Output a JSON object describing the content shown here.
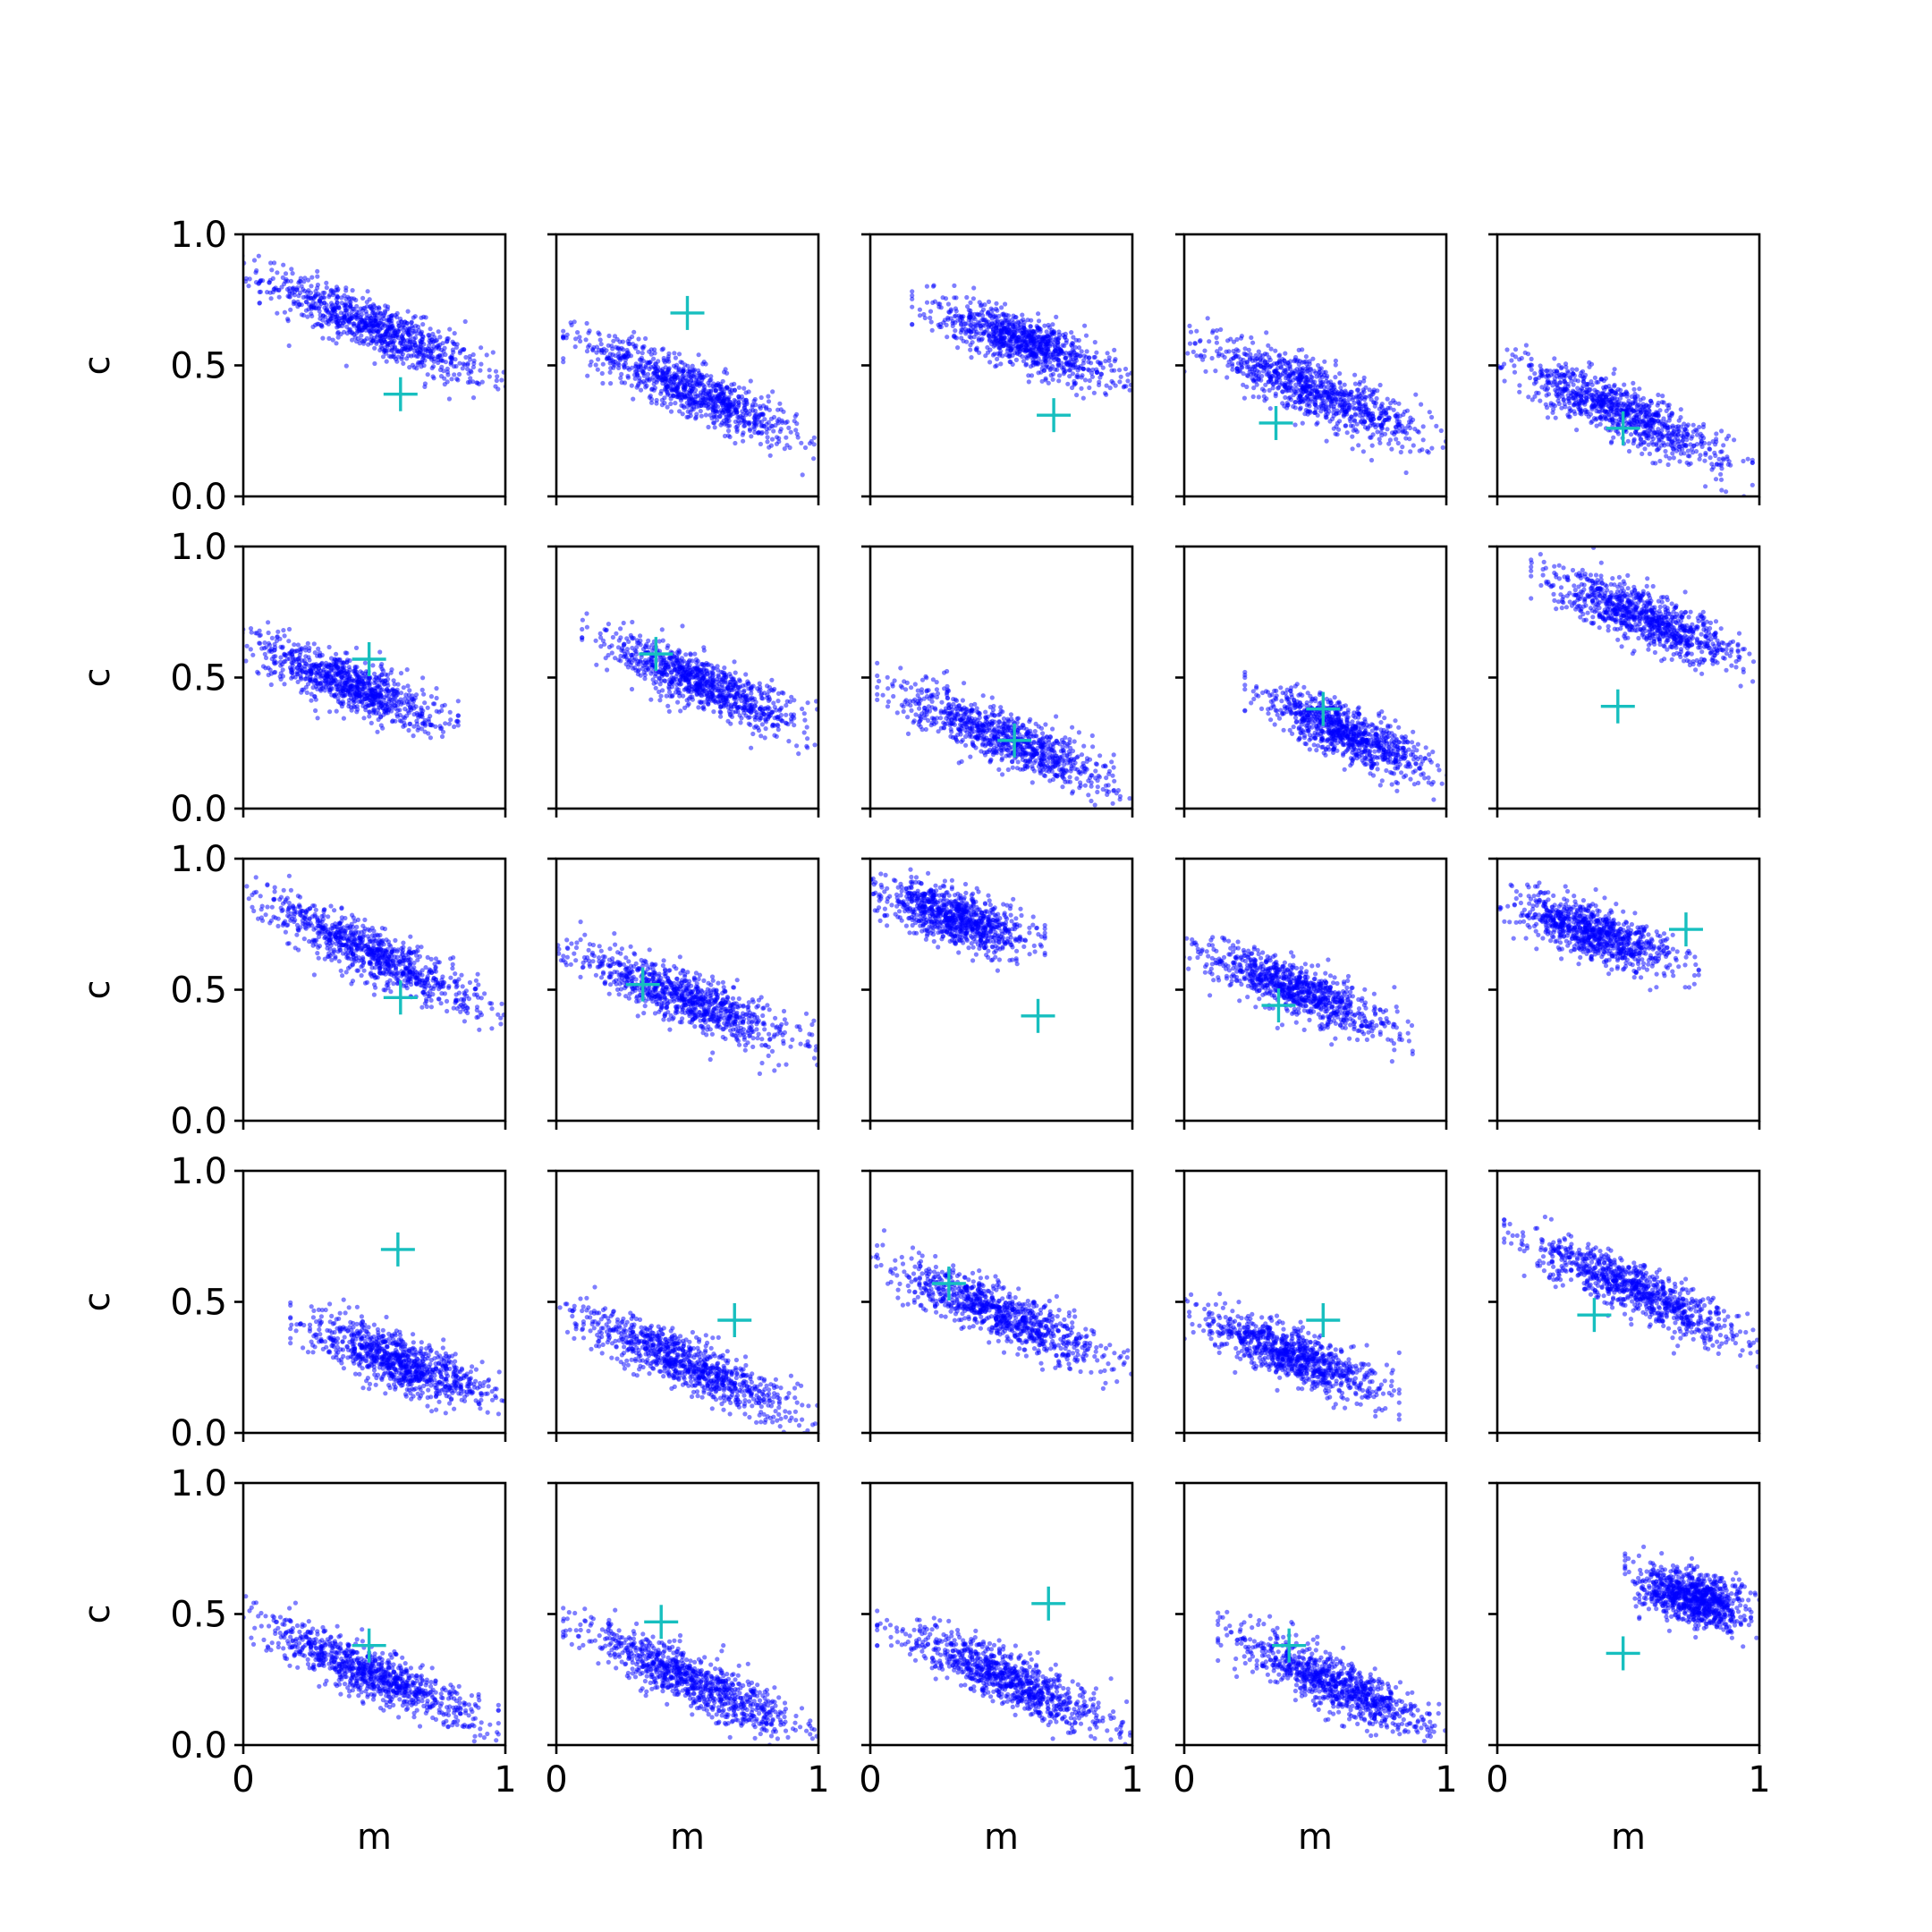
{
  "figure": {
    "rows": 5,
    "cols": 5,
    "xlabel": "m",
    "ylabel": "c",
    "xlim": [
      0,
      1
    ],
    "ylim": [
      0,
      1
    ],
    "x_ticks": [
      "0",
      "1"
    ],
    "y_ticks": [
      "0.0",
      "0.5",
      "1.0"
    ],
    "point_color": "#0000ff",
    "marker_color": "#17bfbf",
    "marker_shape": "plus-icon"
  },
  "chart_data": [
    {
      "type": "scatter",
      "panel": [
        1,
        1
      ],
      "cloud": {
        "x_range": [
          0.0,
          1.0
        ],
        "y_at_x0": 0.86,
        "y_at_x1": 0.43,
        "spread": 0.05
      },
      "truth": {
        "m": 0.6,
        "c": 0.39
      }
    },
    {
      "type": "scatter",
      "panel": [
        1,
        2
      ],
      "cloud": {
        "x_range": [
          0.05,
          1.0
        ],
        "y_at_x0": 0.63,
        "y_at_x1": 0.2,
        "spread": 0.05
      },
      "truth": {
        "m": 0.5,
        "c": 0.7
      }
    },
    {
      "type": "scatter",
      "panel": [
        1,
        3
      ],
      "cloud": {
        "x_range": [
          0.18,
          1.0
        ],
        "y_at_x0": 0.8,
        "y_at_x1": 0.44,
        "spread": 0.05
      },
      "truth": {
        "m": 0.7,
        "c": 0.31
      }
    },
    {
      "type": "scatter",
      "panel": [
        1,
        4
      ],
      "cloud": {
        "x_range": [
          0.0,
          1.0
        ],
        "y_at_x0": 0.6,
        "y_at_x1": 0.2,
        "spread": 0.05
      },
      "truth": {
        "m": 0.35,
        "c": 0.28
      }
    },
    {
      "type": "scatter",
      "panel": [
        1,
        5
      ],
      "cloud": {
        "x_range": [
          0.0,
          0.95
        ],
        "y_at_x0": 0.52,
        "y_at_x1": 0.1,
        "spread": 0.05
      },
      "truth": {
        "m": 0.48,
        "c": 0.26
      }
    },
    {
      "type": "scatter",
      "panel": [
        2,
        1
      ],
      "cloud": {
        "x_range": [
          0.0,
          0.8
        ],
        "y_at_x0": 0.63,
        "y_at_x1": 0.25,
        "spread": 0.05
      },
      "truth": {
        "m": 0.48,
        "c": 0.57
      }
    },
    {
      "type": "scatter",
      "panel": [
        2,
        2
      ],
      "cloud": {
        "x_range": [
          0.12,
          1.0
        ],
        "y_at_x0": 0.7,
        "y_at_x1": 0.3,
        "spread": 0.05
      },
      "truth": {
        "m": 0.38,
        "c": 0.59
      }
    },
    {
      "type": "scatter",
      "panel": [
        2,
        3
      ],
      "cloud": {
        "x_range": [
          0.05,
          1.0
        ],
        "y_at_x0": 0.47,
        "y_at_x1": 0.08,
        "spread": 0.05
      },
      "truth": {
        "m": 0.55,
        "c": 0.26
      }
    },
    {
      "type": "scatter",
      "panel": [
        2,
        4
      ],
      "cloud": {
        "x_range": [
          0.25,
          1.0
        ],
        "y_at_x0": 0.55,
        "y_at_x1": 0.13,
        "spread": 0.05
      },
      "truth": {
        "m": 0.53,
        "c": 0.38
      }
    },
    {
      "type": "scatter",
      "panel": [
        2,
        5
      ],
      "cloud": {
        "x_range": [
          0.15,
          1.0
        ],
        "y_at_x0": 0.95,
        "y_at_x1": 0.55,
        "spread": 0.05
      },
      "truth": {
        "m": 0.46,
        "c": 0.39
      }
    },
    {
      "type": "scatter",
      "panel": [
        3,
        1
      ],
      "cloud": {
        "x_range": [
          0.0,
          1.0
        ],
        "y_at_x0": 0.87,
        "y_at_x1": 0.4,
        "spread": 0.05
      },
      "truth": {
        "m": 0.6,
        "c": 0.47
      }
    },
    {
      "type": "scatter",
      "panel": [
        3,
        2
      ],
      "cloud": {
        "x_range": [
          0.0,
          1.0
        ],
        "y_at_x0": 0.65,
        "y_at_x1": 0.28,
        "spread": 0.05
      },
      "truth": {
        "m": 0.33,
        "c": 0.52
      }
    },
    {
      "type": "scatter",
      "panel": [
        3,
        3
      ],
      "cloud": {
        "x_range": [
          0.0,
          0.65
        ],
        "y_at_x0": 0.87,
        "y_at_x1": 0.58,
        "spread": 0.05
      },
      "truth": {
        "m": 0.64,
        "c": 0.4
      }
    },
    {
      "type": "scatter",
      "panel": [
        3,
        4
      ],
      "cloud": {
        "x_range": [
          0.0,
          0.85
        ],
        "y_at_x0": 0.66,
        "y_at_x1": 0.28,
        "spread": 0.05
      },
      "truth": {
        "m": 0.36,
        "c": 0.44
      }
    },
    {
      "type": "scatter",
      "panel": [
        3,
        5
      ],
      "cloud": {
        "x_range": [
          0.0,
          0.75
        ],
        "y_at_x0": 0.83,
        "y_at_x1": 0.52,
        "spread": 0.05
      },
      "truth": {
        "m": 0.72,
        "c": 0.73
      }
    },
    {
      "type": "scatter",
      "panel": [
        4,
        1
      ],
      "cloud": {
        "x_range": [
          0.2,
          1.0
        ],
        "y_at_x0": 0.48,
        "y_at_x1": 0.13,
        "spread": 0.05
      },
      "truth": {
        "m": 0.59,
        "c": 0.7
      }
    },
    {
      "type": "scatter",
      "panel": [
        4,
        2
      ],
      "cloud": {
        "x_range": [
          0.0,
          1.0
        ],
        "y_at_x0": 0.48,
        "y_at_x1": 0.05,
        "spread": 0.05
      },
      "truth": {
        "m": 0.68,
        "c": 0.43
      }
    },
    {
      "type": "scatter",
      "panel": [
        4,
        3
      ],
      "cloud": {
        "x_range": [
          0.0,
          1.0
        ],
        "y_at_x0": 0.66,
        "y_at_x1": 0.25,
        "spread": 0.05
      },
      "truth": {
        "m": 0.3,
        "c": 0.57
      }
    },
    {
      "type": "scatter",
      "panel": [
        4,
        4
      ],
      "cloud": {
        "x_range": [
          0.0,
          0.8
        ],
        "y_at_x0": 0.45,
        "y_at_x1": 0.08,
        "spread": 0.05
      },
      "truth": {
        "m": 0.53,
        "c": 0.43
      }
    },
    {
      "type": "scatter",
      "panel": [
        4,
        5
      ],
      "cloud": {
        "x_range": [
          0.05,
          1.0
        ],
        "y_at_x0": 0.77,
        "y_at_x1": 0.34,
        "spread": 0.05
      },
      "truth": {
        "m": 0.37,
        "c": 0.45
      }
    },
    {
      "type": "scatter",
      "panel": [
        5,
        1
      ],
      "cloud": {
        "x_range": [
          0.0,
          0.95
        ],
        "y_at_x0": 0.48,
        "y_at_x1": 0.05,
        "spread": 0.05
      },
      "truth": {
        "m": 0.48,
        "c": 0.38
      }
    },
    {
      "type": "scatter",
      "panel": [
        5,
        2
      ],
      "cloud": {
        "x_range": [
          0.05,
          1.0
        ],
        "y_at_x0": 0.48,
        "y_at_x1": 0.03,
        "spread": 0.05
      },
      "truth": {
        "m": 0.4,
        "c": 0.47
      }
    },
    {
      "type": "scatter",
      "panel": [
        5,
        3
      ],
      "cloud": {
        "x_range": [
          0.05,
          1.0
        ],
        "y_at_x0": 0.48,
        "y_at_x1": 0.05,
        "spread": 0.05
      },
      "truth": {
        "m": 0.68,
        "c": 0.54
      }
    },
    {
      "type": "scatter",
      "panel": [
        5,
        4
      ],
      "cloud": {
        "x_range": [
          0.15,
          1.0
        ],
        "y_at_x0": 0.48,
        "y_at_x1": 0.05,
        "spread": 0.05
      },
      "truth": {
        "m": 0.4,
        "c": 0.38
      }
    },
    {
      "type": "scatter",
      "panel": [
        5,
        5
      ],
      "cloud": {
        "x_range": [
          0.5,
          1.0
        ],
        "y_at_x0": 0.75,
        "y_at_x1": 0.5,
        "spread": 0.05
      },
      "truth": {
        "m": 0.48,
        "c": 0.35
      }
    }
  ]
}
